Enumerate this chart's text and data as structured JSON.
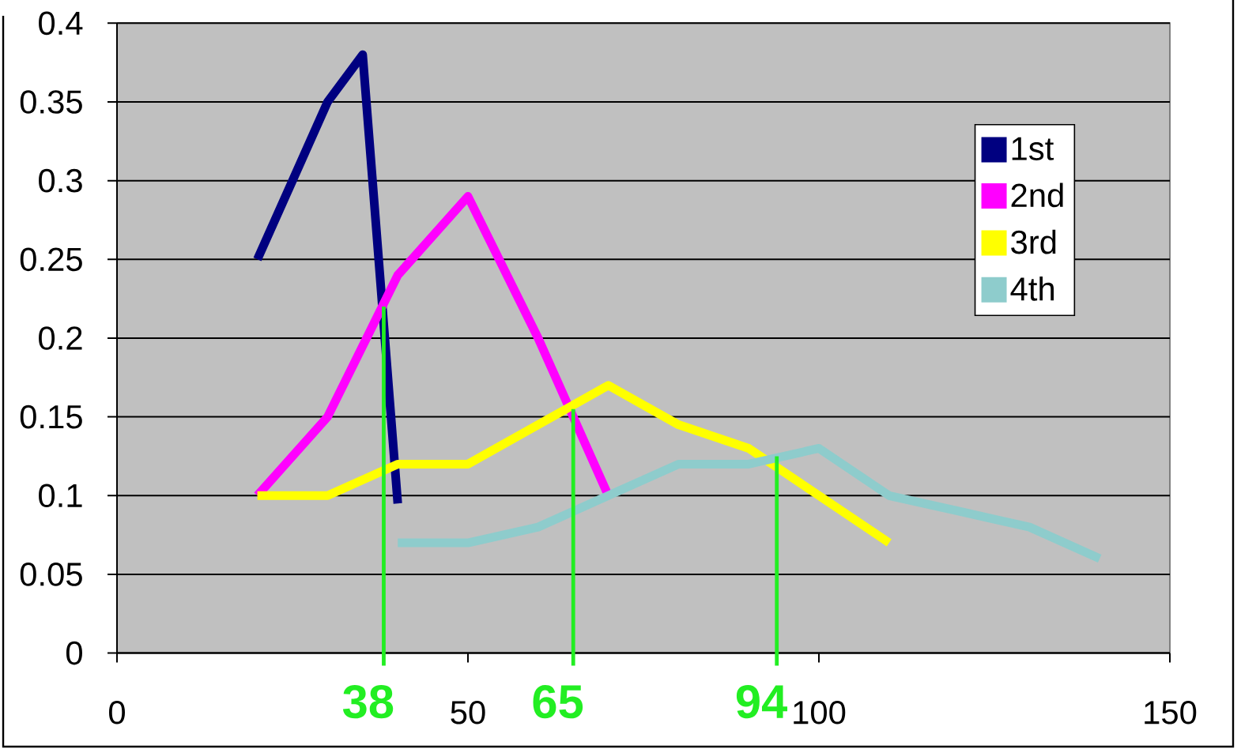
{
  "chart_data": {
    "type": "line",
    "series": [
      {
        "name": "1st",
        "color": "#000080",
        "x": [
          20,
          25,
          30,
          35,
          40
        ],
        "values": [
          0.25,
          0.3,
          0.35,
          0.38,
          0.095
        ]
      },
      {
        "name": "2nd",
        "color": "#ff00ff",
        "x": [
          20,
          30,
          40,
          50,
          60,
          70
        ],
        "values": [
          0.1,
          0.15,
          0.24,
          0.29,
          0.2,
          0.1
        ]
      },
      {
        "name": "3rd",
        "color": "#ffff00",
        "x": [
          20,
          30,
          40,
          50,
          70,
          80,
          90,
          100,
          110
        ],
        "values": [
          0.1,
          0.1,
          0.12,
          0.12,
          0.17,
          0.145,
          0.13,
          0.1,
          0.07
        ]
      },
      {
        "name": "4th",
        "color": "#8ecccc",
        "x": [
          40,
          50,
          60,
          70,
          80,
          90,
          100,
          110,
          120,
          130,
          140
        ],
        "values": [
          0.07,
          0.07,
          0.08,
          0.1,
          0.12,
          0.12,
          0.13,
          0.1,
          0.09,
          0.08,
          0.06
        ]
      }
    ],
    "xlim": [
      0,
      150
    ],
    "xticks": [
      0,
      50,
      100,
      150
    ],
    "ylim": [
      0,
      0.4
    ],
    "yticks": [
      0,
      0.05,
      0.1,
      0.15,
      0.2,
      0.25,
      0.3,
      0.35,
      0.4
    ],
    "grid": "y",
    "legend": "right",
    "annotations": [
      {
        "text": "38",
        "x": 38,
        "y": 0.22
      },
      {
        "text": "65",
        "x": 65,
        "y": 0.155
      },
      {
        "text": "94",
        "x": 94,
        "y": 0.125
      }
    ]
  }
}
